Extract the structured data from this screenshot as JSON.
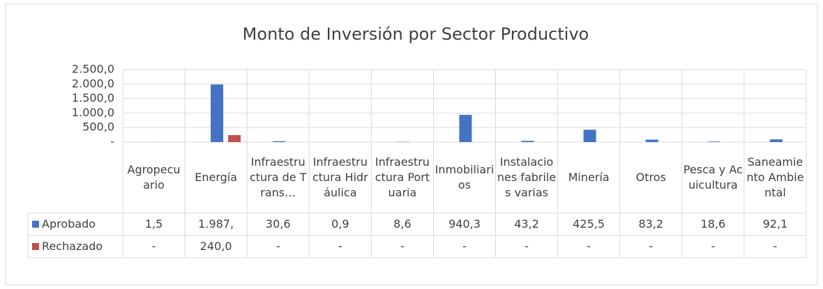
{
  "chart_data": {
    "type": "bar",
    "title": "Monto de Inversión por Sector Productivo",
    "categories": [
      "Agropecuario",
      "Energía",
      "Infraestructura de Trans…",
      "Infraestructura Hidráulica",
      "Infraestructura Portuaria",
      "Inmobiliarios",
      "Instalaciones fabriles varias",
      "Minería",
      "Otros",
      "Pesca y Acuicultura",
      "Saneamiento Ambiental"
    ],
    "series": [
      {
        "name": "Aprobado",
        "color": "#4472c4",
        "values": [
          1.5,
          1987,
          30.6,
          0.9,
          8.6,
          940.3,
          43.2,
          425.5,
          83.2,
          18.6,
          92.1
        ],
        "value_labels": [
          "1,5",
          "1.987,",
          "30,6",
          "0,9",
          "8,6",
          "940,3",
          "43,2",
          "425,5",
          "83,2",
          "18,6",
          "92,1"
        ]
      },
      {
        "name": "Rechazado",
        "color": "#c0504d",
        "values": [
          0,
          240,
          0,
          0,
          0,
          0,
          0,
          0,
          0,
          0,
          0
        ],
        "value_labels": [
          "-",
          "240,0",
          "-",
          "-",
          "-",
          "-",
          "-",
          "-",
          "-",
          "-",
          "-"
        ]
      }
    ],
    "ylim": [
      0,
      2500
    ],
    "yticks": [
      {
        "value": 0,
        "label": "-"
      },
      {
        "value": 500,
        "label": "500,0"
      },
      {
        "value": 1000,
        "label": "1.000,0"
      },
      {
        "value": 1500,
        "label": "1.500,0"
      },
      {
        "value": 2000,
        "label": "2.000,0"
      },
      {
        "value": 2500,
        "label": "2.500,0"
      }
    ],
    "grid": true
  }
}
